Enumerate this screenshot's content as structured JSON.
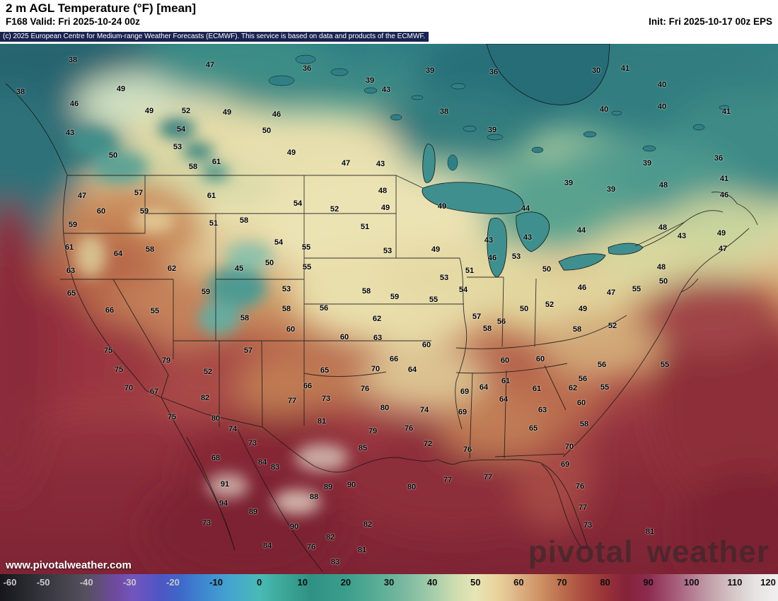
{
  "header": {
    "title": "2 m AGL Temperature (°F) [mean]",
    "valid": "F168 Valid: Fri 2025-10-24 00z",
    "init": "Init: Fri 2025-10-17 00z EPS",
    "copyright": "(c) 2025 European Centre for Medium-range Weather Forecasts (ECMWF). This service is based on data and products of the ECMWF."
  },
  "branding": {
    "watermark": "pivotal weather",
    "site_url": "www.pivotalweather.com"
  },
  "colors": {
    "copyright_bar_bg": "#1a2350",
    "header_bg": "#ffffff",
    "label_color": "#000000",
    "watermark_color": "rgba(40,40,40,0.55)"
  },
  "colorbar": {
    "unit": "°F",
    "min": -60,
    "max": 120,
    "ticks": [
      -60,
      -50,
      -40,
      -30,
      -20,
      -10,
      0,
      10,
      20,
      30,
      40,
      50,
      60,
      70,
      80,
      90,
      100,
      110,
      120
    ]
  },
  "stations": [
    [
      103,
      85,
      38
    ],
    [
      297,
      92,
      47
    ],
    [
      434,
      97,
      36
    ],
    [
      608,
      100,
      39
    ],
    [
      698,
      102,
      36
    ],
    [
      843,
      100,
      30
    ],
    [
      884,
      97,
      41
    ],
    [
      523,
      114,
      39
    ],
    [
      936,
      120,
      40
    ],
    [
      29,
      130,
      38
    ],
    [
      171,
      126,
      49
    ],
    [
      546,
      127,
      43
    ],
    [
      936,
      151,
      40
    ],
    [
      1027,
      158,
      41
    ],
    [
      105,
      147,
      46
    ],
    [
      211,
      157,
      49
    ],
    [
      263,
      157,
      52
    ],
    [
      321,
      159,
      49
    ],
    [
      391,
      162,
      46
    ],
    [
      628,
      158,
      38
    ],
    [
      854,
      155,
      40
    ],
    [
      99,
      188,
      43
    ],
    [
      256,
      183,
      54
    ],
    [
      377,
      185,
      50
    ],
    [
      696,
      184,
      39
    ],
    [
      160,
      220,
      50
    ],
    [
      251,
      208,
      53
    ],
    [
      412,
      216,
      49
    ],
    [
      1016,
      224,
      36
    ],
    [
      273,
      236,
      58
    ],
    [
      306,
      229,
      61
    ],
    [
      489,
      231,
      47
    ],
    [
      538,
      232,
      43
    ],
    [
      915,
      231,
      39
    ],
    [
      804,
      259,
      39
    ],
    [
      864,
      268,
      39
    ],
    [
      938,
      262,
      48
    ],
    [
      1024,
      253,
      41
    ],
    [
      116,
      277,
      47
    ],
    [
      196,
      273,
      57
    ],
    [
      299,
      277,
      61
    ],
    [
      541,
      270,
      48
    ],
    [
      1024,
      276,
      46
    ],
    [
      421,
      288,
      54
    ],
    [
      625,
      292,
      49
    ],
    [
      743,
      295,
      44
    ],
    [
      143,
      299,
      60
    ],
    [
      204,
      299,
      59
    ],
    [
      473,
      296,
      52
    ],
    [
      545,
      294,
      49
    ],
    [
      103,
      318,
      59
    ],
    [
      302,
      316,
      51
    ],
    [
      345,
      312,
      58
    ],
    [
      516,
      321,
      51
    ],
    [
      937,
      322,
      48
    ],
    [
      1020,
      330,
      49
    ],
    [
      822,
      326,
      44
    ],
    [
      691,
      340,
      43
    ],
    [
      746,
      336,
      43
    ],
    [
      964,
      334,
      43
    ],
    [
      98,
      350,
      61
    ],
    [
      167,
      359,
      64
    ],
    [
      212,
      353,
      58
    ],
    [
      394,
      343,
      54
    ],
    [
      433,
      350,
      55
    ],
    [
      548,
      355,
      53
    ],
    [
      616,
      353,
      49
    ],
    [
      696,
      365,
      46
    ],
    [
      730,
      363,
      53
    ],
    [
      1022,
      352,
      47
    ],
    [
      100,
      383,
      63
    ],
    [
      243,
      380,
      62
    ],
    [
      338,
      380,
      45
    ],
    [
      381,
      372,
      50
    ],
    [
      434,
      378,
      55
    ],
    [
      628,
      393,
      53
    ],
    [
      664,
      383,
      51
    ],
    [
      773,
      381,
      50
    ],
    [
      935,
      378,
      48
    ],
    [
      101,
      415,
      65
    ],
    [
      291,
      413,
      59
    ],
    [
      405,
      409,
      53
    ],
    [
      518,
      412,
      58
    ],
    [
      655,
      410,
      54
    ],
    [
      900,
      409,
      55
    ],
    [
      938,
      398,
      50
    ],
    [
      864,
      414,
      47
    ],
    [
      823,
      407,
      46
    ],
    [
      155,
      439,
      66
    ],
    [
      219,
      440,
      55
    ],
    [
      346,
      450,
      58
    ],
    [
      405,
      437,
      58
    ],
    [
      458,
      436,
      56
    ],
    [
      558,
      420,
      59
    ],
    [
      613,
      424,
      55
    ],
    [
      533,
      451,
      62
    ],
    [
      674,
      448,
      57
    ],
    [
      741,
      437,
      50
    ],
    [
      777,
      431,
      52
    ],
    [
      824,
      437,
      49
    ],
    [
      411,
      466,
      60
    ],
    [
      487,
      477,
      60
    ],
    [
      534,
      478,
      63
    ],
    [
      603,
      488,
      60
    ],
    [
      689,
      465,
      58
    ],
    [
      709,
      455,
      56
    ],
    [
      816,
      466,
      58
    ],
    [
      866,
      461,
      52
    ],
    [
      153,
      496,
      75
    ],
    [
      351,
      496,
      57
    ],
    [
      557,
      508,
      66
    ],
    [
      583,
      523,
      64
    ],
    [
      714,
      510,
      60
    ],
    [
      764,
      508,
      60
    ],
    [
      851,
      516,
      56
    ],
    [
      940,
      516,
      55
    ],
    [
      168,
      523,
      75
    ],
    [
      235,
      510,
      79
    ],
    [
      294,
      526,
      52
    ],
    [
      459,
      524,
      65
    ],
    [
      531,
      522,
      70
    ],
    [
      715,
      539,
      61
    ],
    [
      684,
      548,
      64
    ],
    [
      824,
      536,
      56
    ],
    [
      182,
      549,
      70
    ],
    [
      218,
      554,
      67
    ],
    [
      435,
      546,
      66
    ],
    [
      461,
      564,
      73
    ],
    [
      516,
      550,
      76
    ],
    [
      657,
      554,
      69
    ],
    [
      712,
      565,
      64
    ],
    [
      759,
      550,
      61
    ],
    [
      810,
      549,
      62
    ],
    [
      855,
      548,
      55
    ],
    [
      290,
      563,
      82
    ],
    [
      413,
      567,
      77
    ],
    [
      544,
      577,
      80
    ],
    [
      600,
      580,
      74
    ],
    [
      654,
      583,
      69
    ],
    [
      767,
      580,
      63
    ],
    [
      822,
      570,
      60
    ],
    [
      243,
      590,
      75
    ],
    [
      305,
      592,
      80
    ],
    [
      455,
      596,
      81
    ],
    [
      527,
      610,
      79
    ],
    [
      578,
      606,
      76
    ],
    [
      754,
      606,
      65
    ],
    [
      826,
      600,
      58
    ],
    [
      329,
      607,
      74
    ],
    [
      357,
      627,
      73
    ],
    [
      513,
      634,
      85
    ],
    [
      605,
      628,
      72
    ],
    [
      661,
      636,
      76
    ],
    [
      805,
      632,
      70
    ],
    [
      305,
      648,
      68
    ],
    [
      371,
      654,
      84
    ],
    [
      389,
      661,
      83
    ],
    [
      799,
      657,
      69
    ],
    [
      318,
      685,
      91
    ],
    [
      464,
      689,
      89
    ],
    [
      497,
      686,
      90
    ],
    [
      582,
      689,
      80
    ],
    [
      633,
      679,
      77
    ],
    [
      690,
      675,
      77
    ],
    [
      820,
      688,
      76
    ],
    [
      316,
      712,
      94
    ],
    [
      358,
      724,
      89
    ],
    [
      444,
      703,
      88
    ],
    [
      824,
      718,
      77
    ],
    [
      292,
      740,
      73
    ],
    [
      416,
      745,
      90
    ],
    [
      831,
      743,
      73
    ],
    [
      919,
      752,
      81
    ],
    [
      378,
      772,
      84
    ],
    [
      440,
      774,
      76
    ],
    [
      512,
      778,
      81
    ],
    [
      467,
      760,
      82
    ],
    [
      520,
      742,
      82
    ],
    [
      474,
      795,
      83
    ]
  ]
}
